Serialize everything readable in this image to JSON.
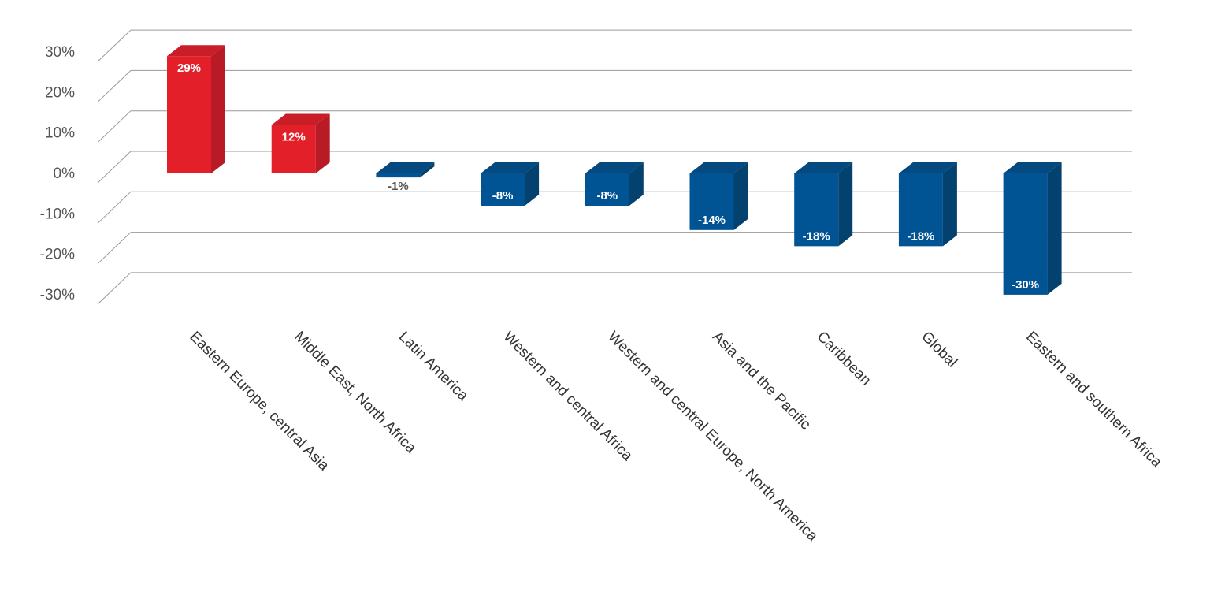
{
  "chart_data": {
    "type": "bar",
    "categories": [
      "Eastern Europe, central Asia",
      "Middle East, North Africa",
      "Latin America",
      "Western and central Africa",
      "Western and central Europe, North America",
      "Asia and the Pacific",
      "Caribbean",
      "Global",
      "Eastern and southern Africa"
    ],
    "values": [
      29,
      12,
      -1,
      -8,
      -8,
      -14,
      -18,
      -18,
      -30
    ],
    "data_labels": [
      "29%",
      "12%",
      "-1%",
      "-8%",
      "-8%",
      "-14%",
      "-18%",
      "-18%",
      "-30%"
    ],
    "yticks": [
      30,
      20,
      10,
      0,
      -10,
      -20,
      -30
    ],
    "ytick_labels": [
      "30%",
      "20%",
      "10%",
      "0%",
      "-10%",
      "-20%",
      "-30%"
    ],
    "ylim": [
      -30,
      30
    ],
    "grid": true,
    "style": "3d-column",
    "colors": {
      "positive_front": "#E3202A",
      "positive_side": "#B81B26",
      "positive_top": "#C91D28",
      "negative_front": "#005494",
      "negative_side": "#03416F",
      "negative_top": "#044A80",
      "grid": "#9a9a9a"
    }
  }
}
